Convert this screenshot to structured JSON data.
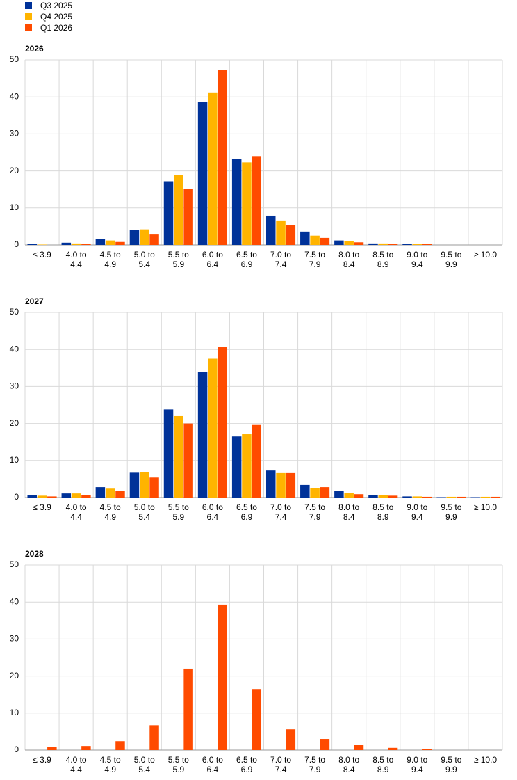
{
  "chart_data": [
    {
      "type": "bar",
      "title": "2026",
      "categories": [
        "≤ 3.9",
        "4.0 to 4.4",
        "4.5 to 4.9",
        "5.0 to 5.4",
        "5.5 to 5.9",
        "6.0 to 6.4",
        "6.5 to 6.9",
        "7.0 to 7.4",
        "7.5 to 7.9",
        "8.0 to 8.4",
        "8.5 to 8.9",
        "9.0 to 9.4",
        "9.5 to 9.9",
        "≥ 10.0"
      ],
      "series": [
        {
          "name": "Q3 2025",
          "color": "#003299",
          "values": [
            0.2,
            0.6,
            1.6,
            4.0,
            17.2,
            38.7,
            23.3,
            7.9,
            3.6,
            1.2,
            0.4,
            0.2,
            0,
            0
          ]
        },
        {
          "name": "Q4 2025",
          "color": "#ffb400",
          "values": [
            0.1,
            0.4,
            1.2,
            4.2,
            18.8,
            41.2,
            22.3,
            6.6,
            2.5,
            1.0,
            0.4,
            0.2,
            0,
            0
          ]
        },
        {
          "name": "Q1 2026",
          "color": "#ff4b00",
          "values": [
            0,
            0.2,
            0.8,
            2.8,
            15.2,
            47.3,
            24.0,
            5.3,
            1.9,
            0.7,
            0.2,
            0.2,
            0,
            0
          ]
        }
      ],
      "ylim": [
        0,
        50
      ],
      "yticks": [
        0,
        10,
        20,
        30,
        40,
        50
      ],
      "grid": true
    },
    {
      "type": "bar",
      "title": "2027",
      "categories": [
        "≤ 3.9",
        "4.0 to 4.4",
        "4.5 to 4.9",
        "5.0 to 5.4",
        "5.5 to 5.9",
        "6.0 to 6.4",
        "6.5 to 6.9",
        "7.0 to 7.4",
        "7.5 to 7.9",
        "8.0 to 8.4",
        "8.5 to 8.9",
        "9.0 to 9.4",
        "9.5 to 9.9",
        "≥ 10.0"
      ],
      "series": [
        {
          "name": "Q3 2025",
          "color": "#003299",
          "values": [
            0.7,
            1.1,
            2.8,
            6.7,
            23.8,
            34.0,
            16.5,
            7.3,
            3.4,
            1.8,
            0.7,
            0.3,
            0.1,
            0.1
          ]
        },
        {
          "name": "Q4 2025",
          "color": "#ffb400",
          "values": [
            0.5,
            1.1,
            2.4,
            6.9,
            22.0,
            37.5,
            17.1,
            6.6,
            2.6,
            1.3,
            0.6,
            0.3,
            0.2,
            0.2
          ]
        },
        {
          "name": "Q1 2026",
          "color": "#ff4b00",
          "values": [
            0.3,
            0.6,
            1.7,
            5.4,
            20.0,
            40.6,
            19.6,
            6.6,
            2.8,
            0.9,
            0.5,
            0.2,
            0.2,
            0.2
          ]
        }
      ],
      "ylim": [
        0,
        50
      ],
      "yticks": [
        0,
        10,
        20,
        30,
        40,
        50
      ],
      "grid": true
    },
    {
      "type": "bar",
      "title": "2028",
      "categories": [
        "≤ 3.9",
        "4.0 to 4.4",
        "4.5 to 4.9",
        "5.0 to 5.4",
        "5.5 to 5.9",
        "6.0 to 6.4",
        "6.5 to 6.9",
        "7.0 to 7.4",
        "7.5 to 7.9",
        "8.0 to 8.4",
        "8.5 to 8.9",
        "9.0 to 9.4",
        "9.5 to 9.9",
        "≥ 10.0"
      ],
      "series": [
        {
          "name": "Q1 2026",
          "color": "#ff4b00",
          "values": [
            0.8,
            1.1,
            2.4,
            6.7,
            22.0,
            39.3,
            16.5,
            5.6,
            3.0,
            1.4,
            0.6,
            0.2,
            0,
            0
          ]
        }
      ],
      "ylim": [
        0,
        50
      ],
      "yticks": [
        0,
        10,
        20,
        30,
        40,
        50
      ],
      "grid": true
    }
  ]
}
